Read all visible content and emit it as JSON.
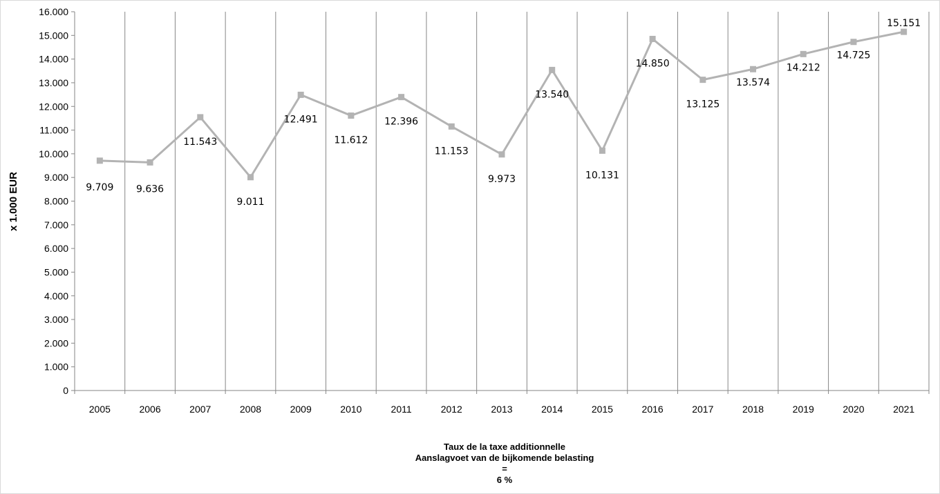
{
  "chart_data": {
    "type": "line",
    "title": "",
    "xlabel": "",
    "ylabel": "x 1.000 EUR",
    "ylim": [
      0,
      16000
    ],
    "y_ticks": [
      "0",
      "1.000",
      "2.000",
      "3.000",
      "4.000",
      "5.000",
      "6.000",
      "7.000",
      "8.000",
      "9.000",
      "10.000",
      "11.000",
      "12.000",
      "13.000",
      "14.000",
      "15.000",
      "16.000"
    ],
    "categories": [
      "2005",
      "2006",
      "2007",
      "2008",
      "2009",
      "2010",
      "2011",
      "2012",
      "2013",
      "2014",
      "2015",
      "2016",
      "2017",
      "2018",
      "2019",
      "2020",
      "2021"
    ],
    "series": [
      {
        "values": [
          9709,
          9636,
          11543,
          9011,
          12491,
          11612,
          12396,
          11153,
          9973,
          13540,
          10131,
          14850,
          13125,
          13574,
          14212,
          14725,
          15151
        ],
        "labels": [
          "9.709",
          "9.636",
          "11.543",
          "9.011",
          "12.491",
          "11.612",
          "12.396",
          "11.153",
          "9.973",
          "13.540",
          "10.131",
          "14.850",
          "13.125",
          "13.574",
          "14.212",
          "14.725",
          "15.151"
        ],
        "color": "#b3b3b3"
      }
    ],
    "grid": "vertical",
    "legend": "none"
  },
  "note": {
    "line1": "Taux de la taxe additionnelle",
    "line2": "Aanslagvoet  van de bijkomende belasting",
    "line3": "=",
    "line4": "6 %"
  }
}
